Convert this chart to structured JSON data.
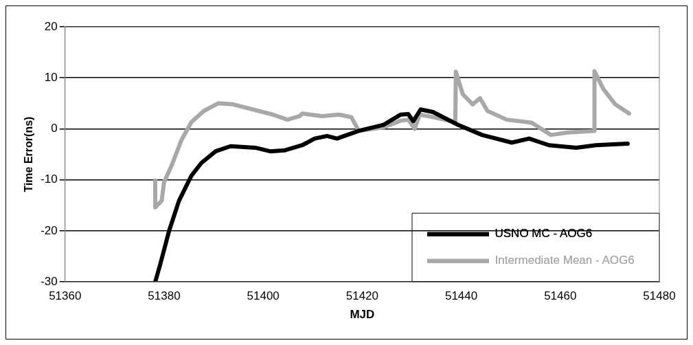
{
  "chart_data": {
    "type": "line",
    "xlabel": "MJD",
    "ylabel": "Time Error(ns)",
    "xlim": [
      51360,
      51480
    ],
    "xticks": [
      51360,
      51380,
      51400,
      51420,
      51440,
      51460,
      51480
    ],
    "ylim": [
      -30,
      20
    ],
    "yticks": [
      -30,
      -20,
      -10,
      0,
      10,
      20
    ],
    "grid": "y",
    "legend": "bottom right",
    "marker": "none",
    "line_style": "solid",
    "series": [
      {
        "name": "USNO MC - AOG6",
        "color": "#000000",
        "x": [
          51378.2,
          51379.2,
          51381.0,
          51383.0,
          51385.5,
          51387.5,
          51390.4,
          51393.4,
          51398.4,
          51401.4,
          51404.4,
          51407.9,
          51410.4,
          51412.9,
          51414.9,
          51419.3,
          51424.3,
          51427.8,
          51429.3,
          51430.3,
          51431.8,
          51434.3,
          51439.3,
          51444.2,
          51450.2,
          51453.7,
          51457.7,
          51463.2,
          51467.2,
          51473.6
        ],
        "values": [
          -30,
          -26.6,
          -20,
          -14.1,
          -9.2,
          -6.7,
          -4.4,
          -3.4,
          -3.7,
          -4.4,
          -4.2,
          -3.2,
          -1.9,
          -1.4,
          -1.9,
          -0.4,
          0.8,
          2.8,
          2.9,
          1.5,
          3.8,
          3.3,
          0.8,
          -1.2,
          -2.7,
          -1.9,
          -3.2,
          -3.7,
          -3.2,
          -2.9
        ]
      },
      {
        "name": "Intermediate Mean - AOG6",
        "color": "#a8a8a8",
        "x": [
          51378.2,
          51378.2,
          51379.5,
          51380.0,
          51381.5,
          51383.5,
          51385.5,
          51388.0,
          51390.9,
          51393.9,
          51397.9,
          51401.9,
          51404.9,
          51407.4,
          51407.9,
          51411.9,
          51415.3,
          51417.8,
          51419.3,
          51424.3,
          51427.8,
          51429.3,
          51430.6,
          51431.6,
          51434.3,
          51438.8,
          51438.9,
          51440.3,
          51442.3,
          51443.8,
          51445.3,
          51449.2,
          51454.2,
          51458.1,
          51461.6,
          51466.9,
          51466.9,
          51468.7,
          51471.1,
          51473.9
        ],
        "values": [
          -10.1,
          -15.4,
          -14.1,
          -10.4,
          -7.2,
          -2.2,
          1.3,
          3.5,
          5.0,
          4.8,
          3.8,
          2.8,
          1.8,
          2.5,
          3.0,
          2.5,
          2.8,
          2.3,
          -0.4,
          0.3,
          1.6,
          1.8,
          0,
          2.8,
          2.3,
          1.3,
          11.2,
          6.8,
          4.8,
          6.0,
          3.5,
          1.8,
          1.2,
          -1.2,
          -0.7,
          -0.4,
          11.3,
          7.8,
          4.8,
          3.0
        ]
      }
    ]
  }
}
